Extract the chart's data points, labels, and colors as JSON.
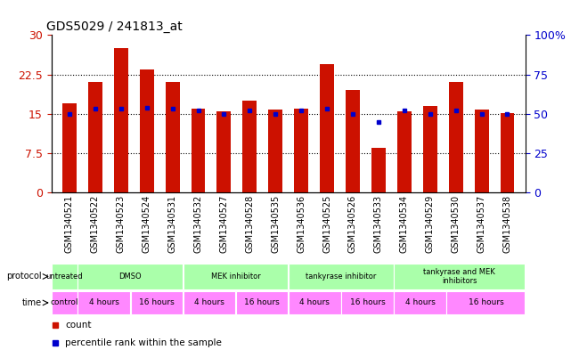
{
  "title": "GDS5029 / 241813_at",
  "samples": [
    "GSM1340521",
    "GSM1340522",
    "GSM1340523",
    "GSM1340524",
    "GSM1340531",
    "GSM1340532",
    "GSM1340527",
    "GSM1340528",
    "GSM1340535",
    "GSM1340536",
    "GSM1340525",
    "GSM1340526",
    "GSM1340533",
    "GSM1340534",
    "GSM1340529",
    "GSM1340530",
    "GSM1340537",
    "GSM1340538"
  ],
  "counts": [
    17.0,
    21.0,
    27.5,
    23.5,
    21.0,
    16.0,
    15.5,
    17.5,
    15.8,
    16.0,
    24.5,
    19.5,
    8.5,
    15.5,
    16.5,
    21.0,
    15.8,
    15.2
  ],
  "percentiles": [
    50,
    53,
    53,
    54,
    53,
    52,
    50,
    52,
    50,
    52,
    53,
    50,
    45,
    52,
    50,
    52,
    50,
    50
  ],
  "bar_color": "#cc1100",
  "dot_color": "#0000cc",
  "ylim_left": [
    0,
    30
  ],
  "ylim_right": [
    0,
    100
  ],
  "yticks_left": [
    0,
    7.5,
    15,
    22.5,
    30
  ],
  "ytick_labels_left": [
    "0",
    "7.5",
    "15",
    "22.5",
    "30"
  ],
  "yticks_right": [
    0,
    25,
    50,
    75,
    100
  ],
  "ytick_labels_right": [
    "0",
    "25",
    "50",
    "75",
    "100%"
  ],
  "protocol_groups": [
    {
      "label": "untreated",
      "start": 0,
      "end": 1
    },
    {
      "label": "DMSO",
      "start": 1,
      "end": 5
    },
    {
      "label": "MEK inhibitor",
      "start": 5,
      "end": 9
    },
    {
      "label": "tankyrase inhibitor",
      "start": 9,
      "end": 13
    },
    {
      "label": "tankyrase and MEK\ninhibitors",
      "start": 13,
      "end": 18
    }
  ],
  "time_groups": [
    {
      "label": "control",
      "start": 0,
      "end": 1
    },
    {
      "label": "4 hours",
      "start": 1,
      "end": 3
    },
    {
      "label": "16 hours",
      "start": 3,
      "end": 5
    },
    {
      "label": "4 hours",
      "start": 5,
      "end": 7
    },
    {
      "label": "16 hours",
      "start": 7,
      "end": 9
    },
    {
      "label": "4 hours",
      "start": 9,
      "end": 11
    },
    {
      "label": "16 hours",
      "start": 11,
      "end": 13
    },
    {
      "label": "4 hours",
      "start": 13,
      "end": 15
    },
    {
      "label": "16 hours",
      "start": 15,
      "end": 18
    }
  ],
  "proto_color": "#aaffaa",
  "time_color": "#ff88ff",
  "background_color": "#ffffff",
  "title_fontsize": 10,
  "tick_fontsize": 7,
  "label_fontsize": 7,
  "row_label_fontsize": 7
}
